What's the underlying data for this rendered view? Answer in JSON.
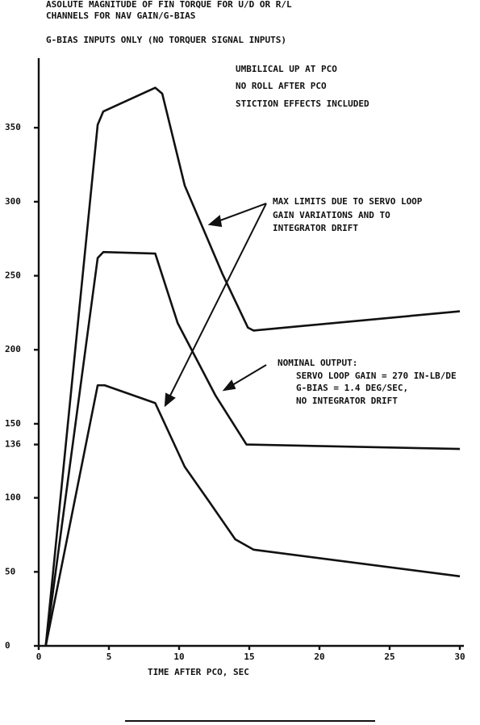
{
  "chart_data": {
    "type": "line",
    "title": [
      "ASOLUTE MAGNITUDE OF FIN TORQUE FOR U/D OR R/L",
      "CHANNELS FOR NAV GAIN/G-BIAS",
      "G-BIAS INPUTS ONLY (NO TORQUER SIGNAL INPUTS)"
    ],
    "xlabel": "TIME AFTER PCO, SEC",
    "annotations": [
      "UMBILICAL UP AT PCO",
      "NO ROLL AFTER PCO",
      "STICTION EFFECTS INCLUDED",
      "MAX LIMITS DUE TO SERVO LOOP",
      "GAIN VARIATIONS AND TO",
      "INTEGRATOR DRIFT",
      "NOMINAL OUTPUT:",
      "SERVO LOOP GAIN = 270 IN-LB/DE",
      "G-BIAS = 1.4 DEG/SEC,",
      "NO INTEGRATOR DRIFT"
    ],
    "xlim": [
      0,
      30
    ],
    "ylim": [
      0,
      397
    ],
    "xticks": [
      0,
      5,
      10,
      15,
      20,
      25,
      30
    ],
    "yticks": [
      0,
      50,
      100,
      136,
      150,
      200,
      250,
      300,
      350
    ],
    "grid": false,
    "series": [
      {
        "color": "#111111",
        "x": [
          0.5,
          4.2,
          4.6,
          8.3,
          8.8,
          10.4,
          13.1,
          14.9,
          15.3,
          30
        ],
        "values": [
          0,
          352,
          361,
          377,
          373,
          311,
          251,
          215,
          213,
          226
        ]
      },
      {
        "color": "#111111",
        "x": [
          0.5,
          4.2,
          4.6,
          8.3,
          9.9,
          12.6,
          14.8,
          30
        ],
        "values": [
          0,
          262,
          266,
          265,
          218,
          169,
          136,
          133
        ]
      },
      {
        "color": "#111111",
        "x": [
          0.5,
          4.2,
          4.7,
          8.3,
          10.4,
          12.1,
          14,
          15.3,
          30
        ],
        "values": [
          0,
          176,
          176,
          164,
          121,
          98,
          72,
          65,
          47
        ]
      }
    ]
  }
}
